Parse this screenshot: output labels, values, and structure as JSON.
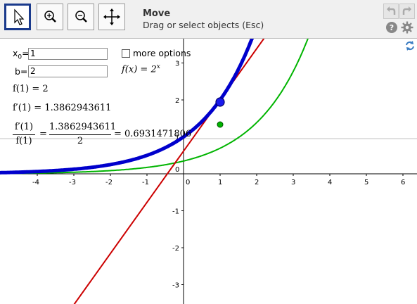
{
  "toolbar": {
    "mode_title": "Move",
    "mode_description": "Drag or select objects (Esc)",
    "tools": [
      {
        "name": "move-tool",
        "icon": "cursor-arrow-icon",
        "selected": true
      },
      {
        "name": "zoom-in-tool",
        "icon": "magnifier-plus-icon",
        "selected": false
      },
      {
        "name": "zoom-out-tool",
        "icon": "magnifier-minus-icon",
        "selected": false
      },
      {
        "name": "move-view-tool",
        "icon": "four-way-arrows-icon",
        "selected": false
      }
    ],
    "right_buttons": [
      "undo-icon",
      "redo-icon",
      "help-icon",
      "settings-gear-icon"
    ]
  },
  "inputs": {
    "x0_label_main": "x",
    "x0_label_sub": "0",
    "x0_label_eq": "=",
    "x0_value": "1",
    "b_label": "b=",
    "b_value": "2"
  },
  "more_options_label": "more options",
  "function_def": {
    "lhs": "f(x) = 2",
    "exponent": "x"
  },
  "algebra": {
    "f1": "f(1) = 2",
    "fprime1": "f′(1) = 1.3862943611",
    "ratio_num_left": "f′(1)",
    "ratio_den_left": "f(1)",
    "ratio_num_right": "1.3862943611",
    "ratio_den_right": "2",
    "ratio_result": "= 0.6931471806",
    "eq": "="
  },
  "axes": {
    "x_ticks": [
      "-4",
      "-3",
      "-2",
      "-1",
      "0",
      "1",
      "2",
      "3",
      "4",
      "5",
      "6"
    ],
    "y_ticks": [
      "3",
      "2",
      "1",
      "0",
      "-1",
      "-2",
      "-3"
    ]
  },
  "colors": {
    "blue_curve": "#0000cc",
    "green_curve": "#00b400",
    "red_line": "#cc0000",
    "selected_tool_border": "#1a3a8c"
  }
}
